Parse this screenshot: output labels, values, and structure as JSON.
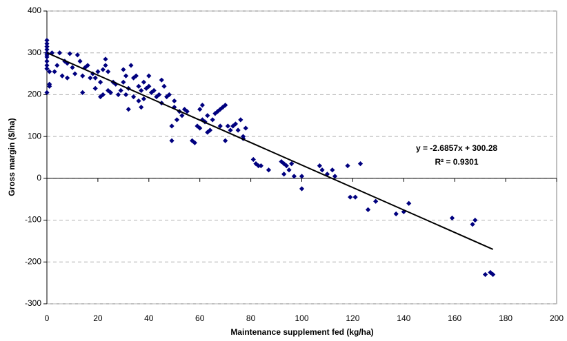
{
  "chart_data": {
    "type": "scatter",
    "x_label": "Maintenance supplement fed (kg/ha)",
    "y_label": "Gross margin ($/ha)",
    "color": "#00007f",
    "x": [
      0,
      0,
      0,
      0,
      0,
      0,
      0,
      0,
      0,
      0,
      0,
      1,
      1,
      1,
      2,
      3,
      4,
      5,
      6,
      7,
      8,
      8,
      9,
      10,
      11,
      12,
      13,
      14,
      14,
      15,
      16,
      17,
      18,
      19,
      19,
      20,
      21,
      21,
      22,
      22,
      23,
      23,
      24,
      24,
      25,
      26,
      27,
      28,
      29,
      30,
      30,
      31,
      31,
      32,
      32,
      33,
      34,
      34,
      35,
      36,
      36,
      37,
      37,
      38,
      38,
      39,
      40,
      40,
      41,
      42,
      43,
      44,
      45,
      45,
      46,
      47,
      48,
      49,
      49,
      50,
      50,
      51,
      52,
      53,
      54,
      55,
      57,
      58,
      59,
      60,
      60,
      61,
      61,
      62,
      63,
      63,
      64,
      65,
      66,
      67,
      68,
      68,
      69,
      70,
      70,
      71,
      72,
      73,
      74,
      75,
      76,
      77,
      77,
      78,
      81,
      82,
      83,
      84,
      87,
      92,
      93,
      93,
      94,
      95,
      96,
      97,
      100,
      100,
      107,
      108,
      110,
      112,
      113,
      118,
      119,
      121,
      123,
      126,
      129,
      137,
      140,
      142,
      159,
      167,
      168,
      172,
      174,
      175
    ],
    "values": [
      330,
      322,
      315,
      308,
      300,
      295,
      290,
      280,
      270,
      262,
      205,
      225,
      220,
      255,
      300,
      255,
      270,
      300,
      245,
      280,
      275,
      240,
      298,
      265,
      250,
      295,
      280,
      205,
      245,
      265,
      270,
      240,
      250,
      215,
      240,
      255,
      230,
      195,
      260,
      200,
      270,
      285,
      255,
      210,
      205,
      230,
      225,
      200,
      210,
      260,
      230,
      245,
      200,
      165,
      215,
      270,
      240,
      195,
      245,
      185,
      220,
      170,
      210,
      230,
      190,
      215,
      245,
      220,
      205,
      210,
      195,
      200,
      235,
      180,
      220,
      195,
      200,
      90,
      125,
      170,
      185,
      140,
      160,
      150,
      165,
      160,
      90,
      85,
      125,
      165,
      120,
      175,
      140,
      135,
      150,
      110,
      115,
      140,
      155,
      160,
      165,
      125,
      170,
      175,
      90,
      125,
      115,
      125,
      130,
      115,
      140,
      100,
      95,
      120,
      45,
      35,
      30,
      30,
      20,
      40,
      35,
      10,
      30,
      20,
      35,
      5,
      -25,
      5,
      30,
      20,
      10,
      20,
      5,
      30,
      -45,
      -45,
      35,
      -75,
      -55,
      -85,
      -80,
      -60,
      -95,
      -110,
      -100,
      -230,
      -225,
      -230
    ],
    "xlim": [
      0,
      200
    ],
    "xticks": [
      0,
      20,
      40,
      60,
      80,
      100,
      120,
      140,
      160,
      180,
      200
    ],
    "ylim": [
      -300,
      400
    ],
    "yticks": [
      -300,
      -200,
      -100,
      0,
      100,
      200,
      300,
      400
    ],
    "grid": true,
    "trendline": {
      "slope": -2.6857,
      "intercept": 300.28,
      "x_range": [
        0,
        175
      ],
      "equation": "y = -2.6857x + 300.28",
      "r_squared": "R² = 0.9301"
    }
  }
}
